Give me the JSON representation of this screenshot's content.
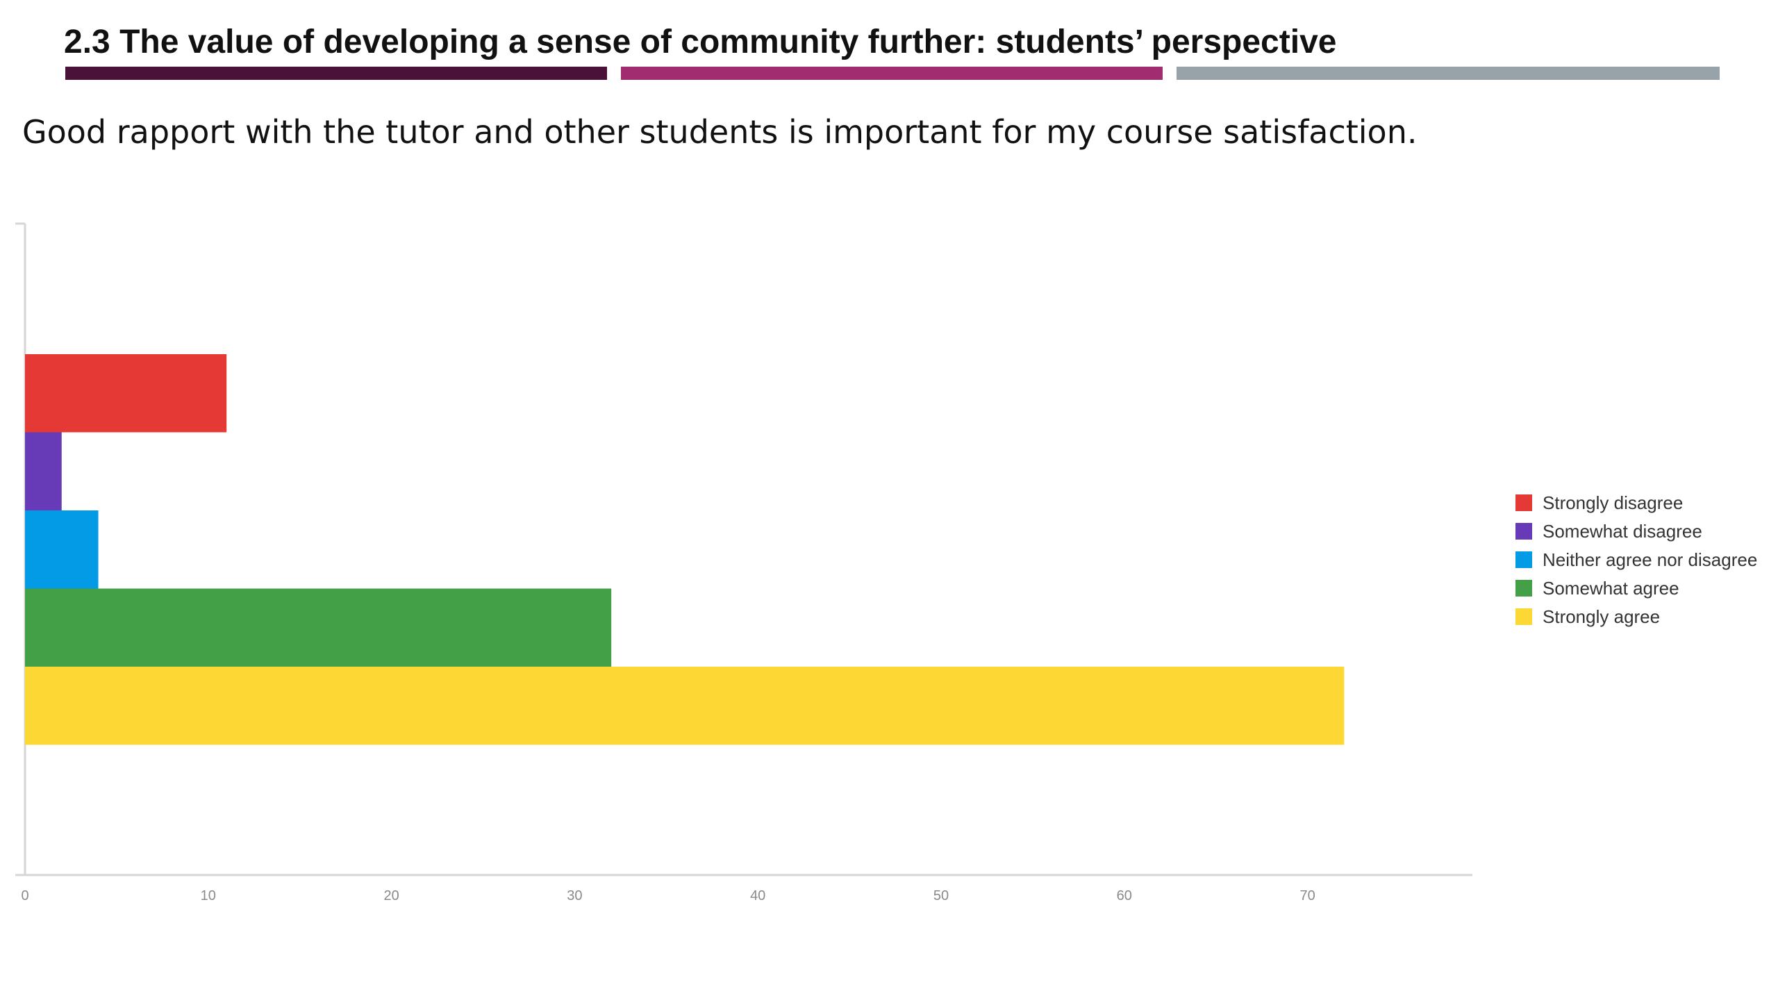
{
  "slide": {
    "title": "2.3 The value of developing a sense of community further: students’ perspective",
    "title_bar_colors": [
      "#4a1238",
      "#a12d70",
      "#97a3a8"
    ],
    "question": "Good rapport with the tutor and other students is important for my course satisfaction."
  },
  "chart_data": {
    "type": "bar",
    "orientation": "horizontal",
    "title": "",
    "xlabel": "",
    "ylabel": "",
    "xlim": [
      0,
      79
    ],
    "x_ticks": [
      0,
      10,
      20,
      30,
      40,
      50,
      60,
      70
    ],
    "grid": false,
    "legend_position": "right",
    "categories": [
      "Strongly disagree",
      "Somewhat disagree",
      "Neither agree nor disagree",
      "Somewhat agree",
      "Strongly agree"
    ],
    "values": [
      11,
      2,
      4,
      32,
      72
    ],
    "colors": [
      "#e53935",
      "#673ab7",
      "#039be5",
      "#43a047",
      "#fdd835"
    ]
  }
}
